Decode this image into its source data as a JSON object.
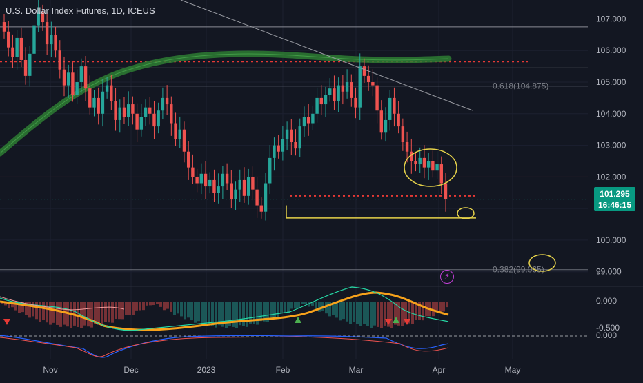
{
  "header": {
    "title": "U.S. Dollar Index Futures, 1D, ICEUS"
  },
  "price_badge": {
    "price": "101.295",
    "countdown": "16:46:15",
    "color": "#089981"
  },
  "icons": {
    "alert": "lightning-bolt-icon"
  },
  "colors": {
    "background": "#131722",
    "up": "#26a69a",
    "down": "#ef5350",
    "ma_green": "#2e7d32",
    "annotation_yellow": "#e6d24a",
    "resistance_red": "#e53935",
    "signal_orange": "#f7a21b"
  },
  "chart_data": [
    {
      "type": "candlestick",
      "title": "U.S. Dollar Index Futures, 1D, ICEUS",
      "ylim": [
        98.6,
        107.6
      ],
      "y_ticks": [
        "107.000",
        "106.000",
        "105.000",
        "104.000",
        "103.000",
        "102.000",
        "101.000",
        "100.000",
        "99.000"
      ],
      "x_ticks": [
        "Nov",
        "Dec",
        "2023",
        "Feb",
        "Mar",
        "Apr",
        "May"
      ],
      "last_price": 101.295,
      "fib_levels": [
        {
          "label": "0.618(104.875)",
          "value": 104.875
        },
        {
          "label": "0.382(99.065)",
          "value": 99.065
        }
      ],
      "horizontal_levels": [
        106.75,
        105.45,
        105.65,
        101.4,
        100.7
      ],
      "trendline": {
        "from": [
          "Oct 20",
          107.9
        ],
        "to": [
          "Mar 30",
          103.95
        ]
      },
      "closes": [
        106.6,
        106.1,
        105.8,
        106.4,
        105.7,
        105.2,
        105.9,
        106.8,
        107.2,
        106.9,
        106.2,
        106.5,
        106.0,
        105.4,
        104.9,
        105.3,
        104.6,
        105.0,
        105.5,
        104.8,
        104.2,
        104.5,
        104.0,
        104.7,
        104.9,
        104.4,
        103.8,
        104.2,
        103.9,
        104.3,
        104.0,
        103.5,
        103.9,
        104.2,
        104.0,
        103.6,
        104.1,
        104.5,
        104.3,
        103.7,
        103.2,
        103.5,
        102.8,
        102.3,
        102.0,
        101.8,
        102.1,
        101.7,
        101.9,
        101.5,
        101.7,
        102.1,
        101.8,
        101.3,
        101.6,
        101.9,
        101.4,
        102.0,
        101.6,
        101.1,
        100.9,
        101.8,
        102.6,
        103.0,
        102.8,
        103.2,
        103.5,
        103.1,
        102.9,
        103.6,
        103.9,
        103.7,
        104.0,
        104.5,
        104.3,
        104.6,
        104.8,
        104.4,
        104.9,
        104.7,
        105.0,
        104.5,
        104.2,
        105.5,
        105.2,
        105.0,
        104.9,
        104.1,
        103.4,
        103.8,
        104.5,
        104.0,
        103.6,
        103.1,
        102.8,
        102.5,
        102.4,
        102.6,
        102.3,
        102.5,
        102.2,
        102.4,
        101.8,
        101.3
      ],
      "macd_signals": {
        "up_arrows": [
          "Feb 16",
          "Mar 13"
        ],
        "down_arrows": [
          "Oct 20",
          "Mar 10",
          "Mar 16"
        ]
      },
      "indicator_levels": [
        "0.000",
        "-0.500",
        "0.000"
      ]
    }
  ]
}
